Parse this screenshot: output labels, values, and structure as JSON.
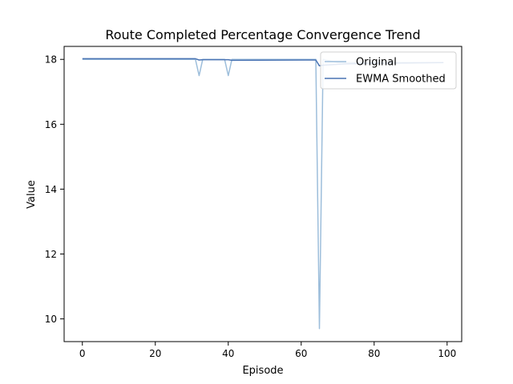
{
  "chart_data": {
    "type": "line",
    "title": "Route Completed Percentage Convergence Trend",
    "xlabel": "Episode",
    "ylabel": "Value",
    "xlim": [
      -5,
      104
    ],
    "ylim": [
      9.3,
      18.4
    ],
    "xticks": [
      0,
      20,
      40,
      60,
      80,
      100
    ],
    "yticks": [
      10,
      12,
      14,
      16,
      18
    ],
    "grid": false,
    "legend_position": "top-right",
    "series": [
      {
        "name": "Original",
        "color": "#9dbedb",
        "points": [
          [
            0,
            18.0
          ],
          [
            31,
            18.0
          ],
          [
            32,
            17.5
          ],
          [
            33,
            18.0
          ],
          [
            39,
            18.0
          ],
          [
            40,
            17.5
          ],
          [
            41,
            18.0
          ],
          [
            64,
            18.0
          ],
          [
            65,
            9.7
          ],
          [
            66,
            18.0
          ],
          [
            70,
            17.9
          ],
          [
            99,
            17.9
          ]
        ]
      },
      {
        "name": "EWMA Smoothed",
        "color": "#4a74b4",
        "points": [
          [
            0,
            18.02
          ],
          [
            31,
            18.02
          ],
          [
            32,
            17.98
          ],
          [
            33,
            17.99
          ],
          [
            40,
            17.99
          ],
          [
            41,
            17.97
          ],
          [
            64,
            17.98
          ],
          [
            65,
            17.8
          ],
          [
            66,
            17.82
          ],
          [
            72,
            17.86
          ],
          [
            80,
            17.88
          ],
          [
            99,
            17.9
          ]
        ]
      }
    ]
  }
}
